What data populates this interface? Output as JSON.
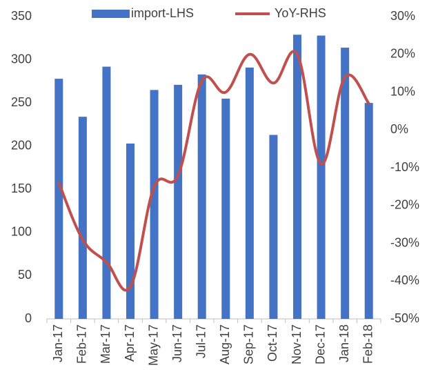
{
  "chart_data": {
    "type": "bar-line",
    "categories": [
      "Jan-17",
      "Feb-17",
      "Mar-17",
      "Apr-17",
      "May-17",
      "Jun-17",
      "Jul-17",
      "Aug-17",
      "Sep-17",
      "Oct-17",
      "Nov-17",
      "Dec-17",
      "Jan-18",
      "Feb-18"
    ],
    "series": [
      {
        "name": "import-LHS",
        "type": "bar",
        "color": "#4472c4",
        "values": [
          278,
          234,
          292,
          203,
          265,
          271,
          283,
          255,
          291,
          213,
          329,
          328,
          314,
          250
        ]
      },
      {
        "name": "YoY-RHS",
        "type": "line",
        "axis": "y2",
        "color": "#c0504d",
        "values": [
          -14,
          -29,
          -35,
          -41.5,
          -15,
          -12,
          13,
          10,
          20,
          12.4,
          20,
          -9,
          14,
          7
        ]
      }
    ],
    "ylim": [
      0,
      350
    ],
    "yticks": [
      0,
      50,
      100,
      150,
      200,
      250,
      300,
      350
    ],
    "y2lim": [
      -50,
      30
    ],
    "y2ticks": [
      {
        "value": -50,
        "label": "-50%"
      },
      {
        "value": -40,
        "label": "-40%"
      },
      {
        "value": -30,
        "label": "-30%"
      },
      {
        "value": -20,
        "label": "-20%"
      },
      {
        "value": -10,
        "label": "-10%"
      },
      {
        "value": 0,
        "label": "0%"
      },
      {
        "value": 10,
        "label": "10%"
      },
      {
        "value": 20,
        "label": "20%"
      },
      {
        "value": 30,
        "label": "30%"
      }
    ],
    "legend": "top"
  }
}
